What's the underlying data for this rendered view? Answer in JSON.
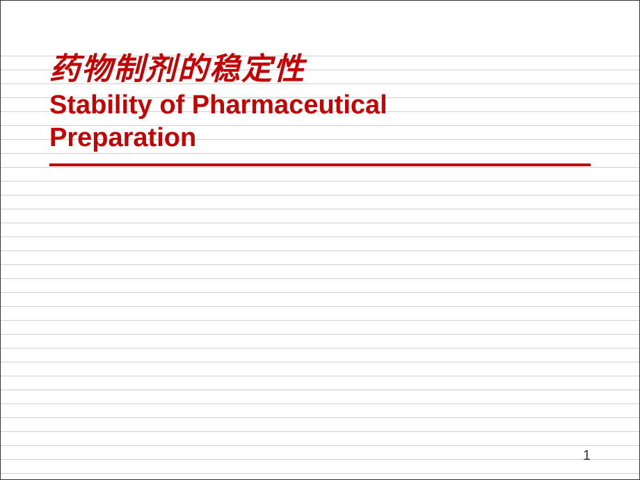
{
  "slide": {
    "title_cn": "药物制剂的稳定性",
    "title_en_line1": "Stability of Pharmaceutical",
    "title_en_line2": "Preparation",
    "page_number": "1"
  },
  "style": {
    "title_color": "#c20404",
    "underline_color": "#c20404",
    "title_cn_fontsize": "44px",
    "title_en_fontsize": "38px",
    "pagenum_color": "#333333",
    "pagenum_fontsize": "20px",
    "ruled_line_color": "#cfcfcf",
    "background_color": "#ffffff"
  }
}
